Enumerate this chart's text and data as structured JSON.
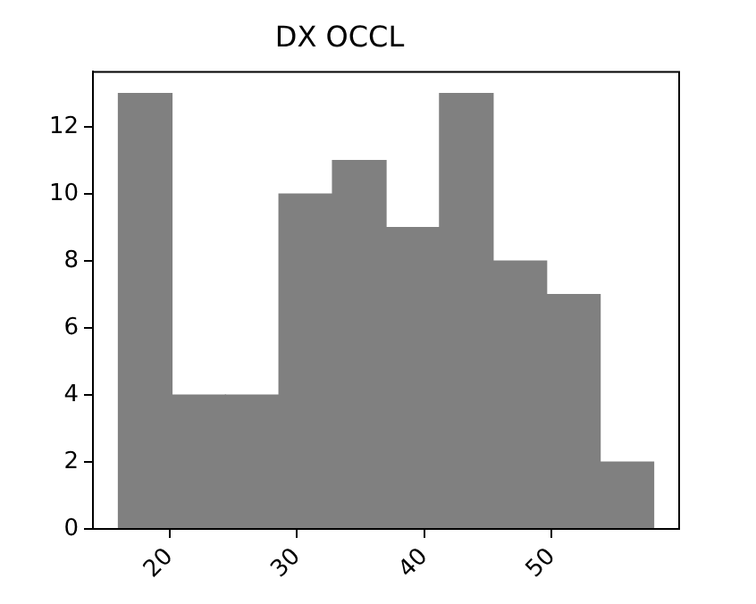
{
  "chart_data": {
    "type": "histogram",
    "title": "DX OCCL",
    "bins": [
      16,
      20.2,
      24.4,
      28.6,
      32.8,
      37,
      41.2,
      45.4,
      49.6,
      53.8,
      58
    ],
    "values": [
      13,
      4,
      4,
      10,
      11,
      9,
      13,
      8,
      7,
      2
    ],
    "color": "#808080",
    "xlim": [
      14,
      60
    ],
    "xticks": [
      20,
      30,
      40,
      50
    ],
    "ylim": [
      0,
      13.65
    ],
    "yticks": [
      0,
      2,
      4,
      6,
      8,
      10,
      12
    ],
    "grid": false
  }
}
